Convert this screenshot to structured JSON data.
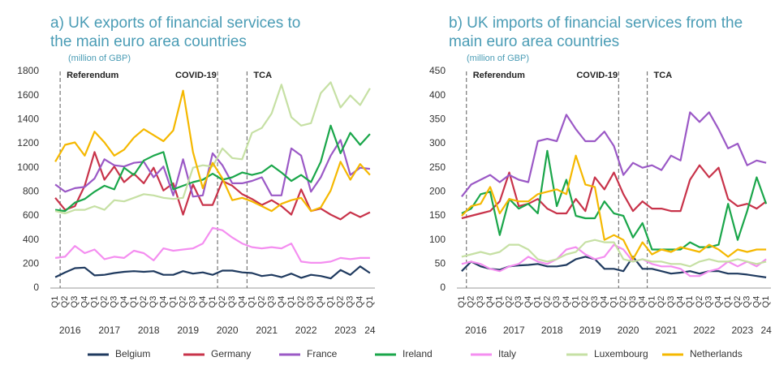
{
  "chart_data": [
    {
      "type": "line",
      "title": [
        "a) UK exports of financial services to",
        "the main euro area countries"
      ],
      "subtitle": "(million of GBP)",
      "categories": [
        "Q1",
        "Q2",
        "Q3",
        "Q4",
        "Q1",
        "Q2",
        "Q3",
        "Q4",
        "Q1",
        "Q2",
        "Q3",
        "Q4",
        "Q1",
        "Q2",
        "Q3",
        "Q4",
        "Q1",
        "Q2",
        "Q3",
        "Q4",
        "Q1",
        "Q2",
        "Q3",
        "Q4",
        "Q1",
        "Q2",
        "Q3",
        "Q4",
        "Q1",
        "Q2",
        "Q3",
        "Q4",
        "Q1"
      ],
      "years": [
        "2016",
        "2017",
        "2018",
        "2019",
        "2020",
        "2021",
        "2022",
        "2023",
        "24"
      ],
      "ylim": [
        0,
        1800
      ],
      "yticks": [
        0,
        200,
        400,
        600,
        800,
        1000,
        1200,
        1400,
        1600,
        1800
      ],
      "annotations": [
        {
          "label": "Referendum",
          "x": 1
        },
        {
          "label": "COVID-19",
          "x": 17
        },
        {
          "label": "TCA",
          "x": 20
        }
      ],
      "series": [
        {
          "name": "Belgium",
          "color": "#1f3a5f",
          "values": [
            90,
            130,
            165,
            170,
            105,
            110,
            125,
            135,
            140,
            135,
            140,
            110,
            110,
            140,
            120,
            130,
            110,
            145,
            145,
            130,
            125,
            100,
            110,
            90,
            120,
            85,
            110,
            100,
            80,
            150,
            110,
            180,
            125
          ]
        },
        {
          "name": "Germany",
          "color": "#c8334a",
          "values": [
            750,
            650,
            680,
            850,
            1130,
            900,
            1010,
            880,
            950,
            870,
            1000,
            810,
            870,
            610,
            860,
            690,
            690,
            890,
            850,
            780,
            740,
            690,
            730,
            680,
            610,
            820,
            640,
            660,
            610,
            570,
            630,
            590,
            630
          ]
        },
        {
          "name": "France",
          "color": "#9b59c6",
          "values": [
            860,
            800,
            830,
            840,
            910,
            1070,
            1020,
            1010,
            1040,
            1050,
            920,
            1010,
            770,
            1070,
            760,
            770,
            1120,
            1020,
            870,
            870,
            890,
            920,
            770,
            770,
            1160,
            1100,
            800,
            920,
            1100,
            1230,
            940,
            1000,
            990
          ]
        },
        {
          "name": "Ireland",
          "color": "#1aa64a",
          "values": [
            650,
            640,
            710,
            740,
            800,
            850,
            820,
            1000,
            940,
            1060,
            1100,
            1130,
            820,
            850,
            880,
            900,
            950,
            900,
            920,
            960,
            940,
            960,
            1020,
            960,
            890,
            940,
            880,
            1050,
            1350,
            1120,
            1290,
            1190,
            1280
          ]
        },
        {
          "name": "Italy",
          "color": "#f48ef0",
          "values": [
            250,
            260,
            350,
            290,
            320,
            240,
            260,
            250,
            310,
            290,
            230,
            330,
            310,
            320,
            330,
            370,
            500,
            480,
            420,
            370,
            340,
            330,
            340,
            330,
            370,
            220,
            210,
            210,
            220,
            250,
            240,
            250,
            250
          ]
        },
        {
          "name": "Luxembourg",
          "color": "#c6e0a4",
          "values": [
            640,
            620,
            650,
            650,
            680,
            650,
            730,
            720,
            750,
            780,
            770,
            750,
            740,
            750,
            1000,
            1020,
            1010,
            1160,
            1080,
            1070,
            1290,
            1330,
            1450,
            1690,
            1420,
            1350,
            1370,
            1620,
            1710,
            1500,
            1600,
            1520,
            1660
          ]
        },
        {
          "name": "Netherlands",
          "color": "#f5b800",
          "values": [
            1050,
            1190,
            1210,
            1100,
            1300,
            1210,
            1100,
            1150,
            1250,
            1320,
            1270,
            1220,
            1310,
            1640,
            1130,
            830,
            1040,
            910,
            730,
            750,
            720,
            680,
            640,
            700,
            730,
            750,
            640,
            670,
            810,
            1050,
            900,
            1030,
            940
          ]
        }
      ]
    },
    {
      "type": "line",
      "title": [
        "b) UK imports of financial services from the",
        "main euro area countries"
      ],
      "subtitle": "(million of GBP)",
      "categories": [
        "Q1",
        "Q2",
        "Q3",
        "Q4",
        "Q1",
        "Q2",
        "Q3",
        "Q4",
        "Q1",
        "Q2",
        "Q3",
        "Q4",
        "Q1",
        "Q2",
        "Q3",
        "Q4",
        "Q1",
        "Q2",
        "Q3",
        "Q4",
        "Q1",
        "Q2",
        "Q3",
        "Q4",
        "Q1",
        "Q2",
        "Q3",
        "Q4",
        "Q1",
        "Q2",
        "Q3",
        "Q4",
        "Q1"
      ],
      "years": [
        "2016",
        "2017",
        "2018",
        "2019",
        "2020",
        "2021",
        "2022",
        "2023",
        "24"
      ],
      "ylim": [
        0,
        450
      ],
      "yticks": [
        0,
        50,
        100,
        150,
        200,
        250,
        300,
        350,
        400,
        450
      ],
      "annotations": [
        {
          "label": "Referendum",
          "x": 1
        },
        {
          "label": "COVID-19",
          "x": 17
        },
        {
          "label": "TCA",
          "x": 20
        }
      ],
      "series": [
        {
          "name": "Belgium",
          "color": "#1f3a5f",
          "values": [
            35,
            55,
            45,
            40,
            38,
            45,
            47,
            48,
            50,
            45,
            45,
            48,
            60,
            65,
            60,
            40,
            40,
            35,
            65,
            40,
            40,
            35,
            30,
            32,
            35,
            30,
            35,
            35,
            30,
            30,
            28,
            25,
            22
          ]
        },
        {
          "name": "Germany",
          "color": "#c8334a",
          "values": [
            145,
            150,
            155,
            160,
            180,
            240,
            170,
            175,
            185,
            165,
            155,
            155,
            185,
            160,
            230,
            205,
            240,
            195,
            160,
            180,
            165,
            165,
            160,
            160,
            225,
            255,
            230,
            250,
            185,
            170,
            175,
            165,
            180
          ]
        },
        {
          "name": "France",
          "color": "#9b59c6",
          "values": [
            190,
            215,
            225,
            235,
            220,
            235,
            225,
            220,
            305,
            310,
            305,
            360,
            330,
            305,
            305,
            325,
            295,
            235,
            260,
            250,
            255,
            245,
            275,
            265,
            365,
            345,
            365,
            330,
            290,
            300,
            255,
            265,
            260
          ]
        },
        {
          "name": "Ireland",
          "color": "#1aa64a",
          "values": [
            155,
            165,
            195,
            200,
            110,
            185,
            165,
            175,
            155,
            285,
            170,
            225,
            150,
            145,
            145,
            180,
            155,
            150,
            105,
            135,
            80,
            80,
            80,
            80,
            95,
            85,
            85,
            90,
            175,
            100,
            160,
            230,
            175
          ]
        },
        {
          "name": "Italy",
          "color": "#f48ef0",
          "values": [
            50,
            55,
            50,
            40,
            35,
            45,
            50,
            65,
            55,
            50,
            60,
            80,
            85,
            70,
            60,
            65,
            90,
            80,
            55,
            60,
            50,
            45,
            45,
            40,
            25,
            25,
            35,
            40,
            55,
            45,
            55,
            45,
            60
          ]
        },
        {
          "name": "Luxembourg",
          "color": "#c6e0a4",
          "values": [
            65,
            70,
            75,
            70,
            75,
            90,
            90,
            80,
            60,
            55,
            60,
            70,
            75,
            95,
            100,
            95,
            95,
            60,
            55,
            60,
            55,
            55,
            50,
            50,
            45,
            55,
            60,
            55,
            55,
            60,
            55,
            50,
            55
          ]
        },
        {
          "name": "Netherlands",
          "color": "#f5b800",
          "values": [
            150,
            170,
            175,
            210,
            155,
            185,
            180,
            180,
            195,
            200,
            205,
            195,
            275,
            215,
            210,
            100,
            110,
            100,
            60,
            95,
            70,
            80,
            75,
            85,
            80,
            75,
            90,
            80,
            65,
            80,
            75,
            80,
            80
          ]
        }
      ]
    }
  ]
}
